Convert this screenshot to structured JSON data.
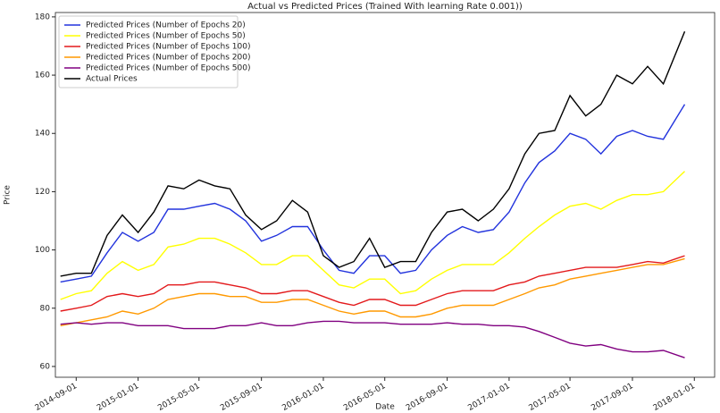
{
  "chart_data": {
    "type": "line",
    "title": "Actual vs Predicted Prices (Trained With learning Rate 0.001))",
    "xlabel": "Date",
    "ylabel": "Price",
    "x": [
      "2014-08-01",
      "2014-09-01",
      "2014-10-01",
      "2014-11-01",
      "2014-12-01",
      "2015-01-01",
      "2015-02-01",
      "2015-03-01",
      "2015-04-01",
      "2015-05-01",
      "2015-06-01",
      "2015-07-01",
      "2015-08-01",
      "2015-09-01",
      "2015-10-01",
      "2015-11-01",
      "2015-12-01",
      "2016-01-01",
      "2016-02-01",
      "2016-03-01",
      "2016-04-01",
      "2016-05-01",
      "2016-06-01",
      "2016-07-01",
      "2016-08-01",
      "2016-09-01",
      "2016-10-01",
      "2016-11-01",
      "2016-12-01",
      "2017-01-01",
      "2017-02-01",
      "2017-03-01",
      "2017-04-01",
      "2017-05-01",
      "2017-06-01",
      "2017-07-01",
      "2017-08-01",
      "2017-09-01",
      "2017-10-01",
      "2017-11-01",
      "2017-12-13"
    ],
    "series": [
      {
        "name": "Predicted Prices (Number of Epochs 20)",
        "color": "#2233dd",
        "values": [
          89,
          90,
          91,
          99,
          106,
          103,
          106,
          114,
          114,
          115,
          116,
          114,
          110,
          103,
          105,
          108,
          108,
          100,
          93,
          92,
          98,
          98,
          92,
          93,
          100,
          105,
          108,
          106,
          107,
          113,
          123,
          130,
          134,
          140,
          138,
          133,
          139,
          141,
          139,
          138,
          150
        ]
      },
      {
        "name": "Predicted Prices (Number of Epochs 50)",
        "color": "#ffff00",
        "values": [
          83,
          85,
          86,
          92,
          96,
          93,
          95,
          101,
          102,
          104,
          104,
          102,
          99,
          95,
          95,
          98,
          98,
          93,
          88,
          87,
          90,
          90,
          85,
          86,
          90,
          93,
          95,
          95,
          95,
          99,
          104,
          108,
          112,
          115,
          116,
          114,
          117,
          119,
          119,
          120,
          127
        ]
      },
      {
        "name": "Predicted Prices (Number of Epochs 100)",
        "color": "#e31a1c",
        "values": [
          79,
          80,
          81,
          84,
          85,
          84,
          85,
          88,
          88,
          89,
          89,
          88,
          87,
          85,
          85,
          86,
          86,
          84,
          82,
          81,
          83,
          83,
          81,
          81,
          83,
          85,
          86,
          86,
          86,
          88,
          89,
          91,
          92,
          93,
          94,
          94,
          94,
          95,
          96,
          95.5,
          98
        ]
      },
      {
        "name": "Predicted Prices (Number of Epochs 200)",
        "color": "#ff9900",
        "values": [
          74,
          75,
          76,
          77,
          79,
          78,
          80,
          83,
          84,
          85,
          85,
          84,
          84,
          82,
          82,
          83,
          83,
          81,
          79,
          78,
          79,
          79,
          77,
          77,
          78,
          80,
          81,
          81,
          81,
          83,
          85,
          87,
          88,
          90,
          91,
          92,
          93,
          94,
          95,
          95,
          97
        ]
      },
      {
        "name": "Predicted Prices (Number of Epochs 500)",
        "color": "#800080",
        "values": [
          74.5,
          75,
          74.5,
          75,
          75,
          74,
          74,
          74,
          73,
          73,
          73,
          74,
          74,
          75,
          74,
          74,
          75,
          75.5,
          75.5,
          75,
          75,
          75,
          74.5,
          74.5,
          74.5,
          75,
          74.5,
          74.5,
          74,
          74,
          73.5,
          72,
          70,
          68,
          67,
          67.5,
          66,
          65,
          65,
          65.5,
          63
        ]
      },
      {
        "name": "Actual Prices",
        "color": "#000000",
        "values": [
          91,
          92,
          92,
          105,
          112,
          106,
          113,
          122,
          121,
          124,
          122,
          121,
          112,
          107,
          110,
          117,
          113,
          98,
          94,
          96,
          104,
          94,
          96,
          96,
          106,
          113,
          114,
          110,
          114,
          121,
          133,
          140,
          141,
          153,
          146,
          150,
          160,
          157,
          163,
          157,
          175
        ]
      }
    ],
    "xlim": [
      "2014-07-22",
      "2018-02-10"
    ],
    "xticks": [
      "2014-09-01",
      "2015-01-01",
      "2015-05-01",
      "2015-09-01",
      "2016-01-01",
      "2016-05-01",
      "2016-09-01",
      "2017-01-01",
      "2017-05-01",
      "2017-09-01",
      "2018-01-01"
    ],
    "ylim": [
      56.3,
      181.5
    ],
    "yticks": [
      60,
      80,
      100,
      120,
      140,
      160,
      180
    ],
    "legend": "upper left",
    "grid": false
  }
}
